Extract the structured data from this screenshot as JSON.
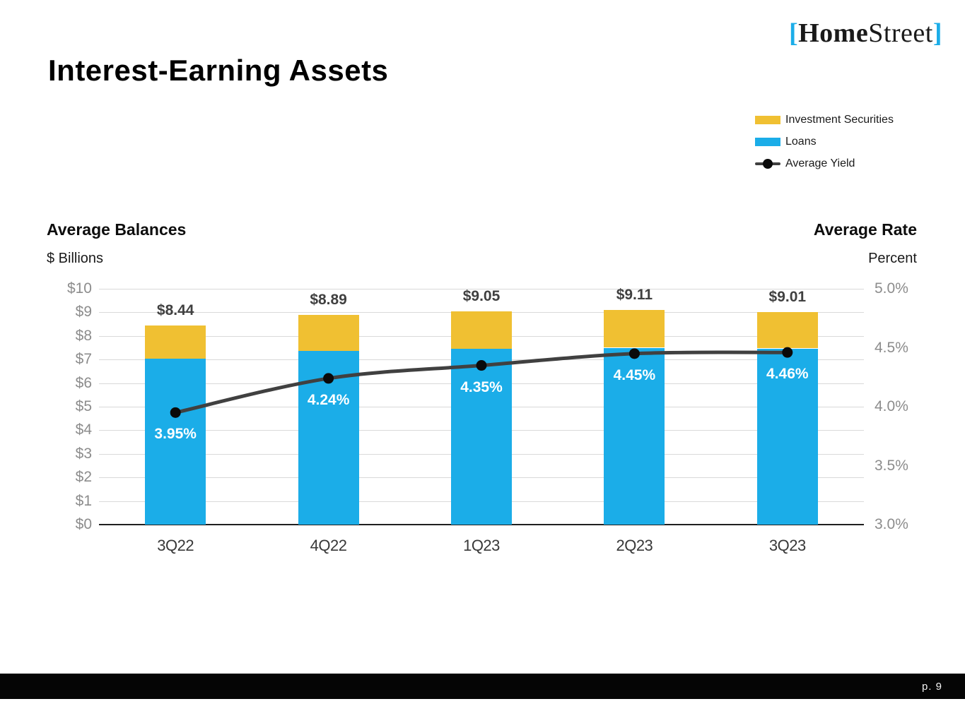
{
  "title": "Interest-Earning Assets",
  "logo": {
    "left_bracket": "[",
    "home": "Home",
    "street": "Street",
    "right_bracket": "]",
    "bracket_color": "#1BADE8"
  },
  "left_header": {
    "title": "Average Balances",
    "unit": "$ Billions"
  },
  "right_header": {
    "title": "Average Rate",
    "unit": "Percent"
  },
  "legend": [
    {
      "label": "Investment Securities",
      "color": "#F0C032",
      "type": "swatch"
    },
    {
      "label": "Loans",
      "color": "#1BADE8",
      "type": "swatch"
    },
    {
      "label": "Average Yield",
      "color": "#404040",
      "marker_color": "#0a0a0a",
      "type": "line-marker"
    }
  ],
  "footer": {
    "page_label": "p. 9"
  },
  "chart_data": {
    "type": "combo",
    "categories": [
      "3Q22",
      "4Q22",
      "1Q23",
      "2Q23",
      "3Q23"
    ],
    "bar_series": [
      {
        "name": "Loans",
        "color": "#1BADE8",
        "values": [
          7.05,
          7.37,
          7.45,
          7.5,
          7.47
        ]
      },
      {
        "name": "Investment Securities",
        "color": "#F0C032",
        "values": [
          1.39,
          1.52,
          1.6,
          1.61,
          1.54
        ]
      }
    ],
    "bar_total_labels": [
      "$8.44",
      "$8.89",
      "$9.05",
      "$9.11",
      "$9.01"
    ],
    "line_series": {
      "name": "Average Yield",
      "color": "#404040",
      "marker_color": "#0a0a0a",
      "values": [
        3.95,
        4.24,
        4.35,
        4.45,
        4.46
      ],
      "labels": [
        "3.95%",
        "4.24%",
        "4.35%",
        "4.45%",
        "4.46%"
      ]
    },
    "left_axis": {
      "min": 0,
      "max": 10,
      "ticks": [
        "$10",
        "$9",
        "$8",
        "$7",
        "$6",
        "$5",
        "$4",
        "$3",
        "$2",
        "$1",
        "$0"
      ]
    },
    "right_axis": {
      "min": 3.0,
      "max": 5.0,
      "ticks": [
        "5.0%",
        "4.5%",
        "4.0%",
        "3.5%",
        "3.0%"
      ]
    },
    "grid": true,
    "gridline_color": "#D9D9D9",
    "baseline_color": "#1f1f1f",
    "legend_position": "top-right"
  }
}
